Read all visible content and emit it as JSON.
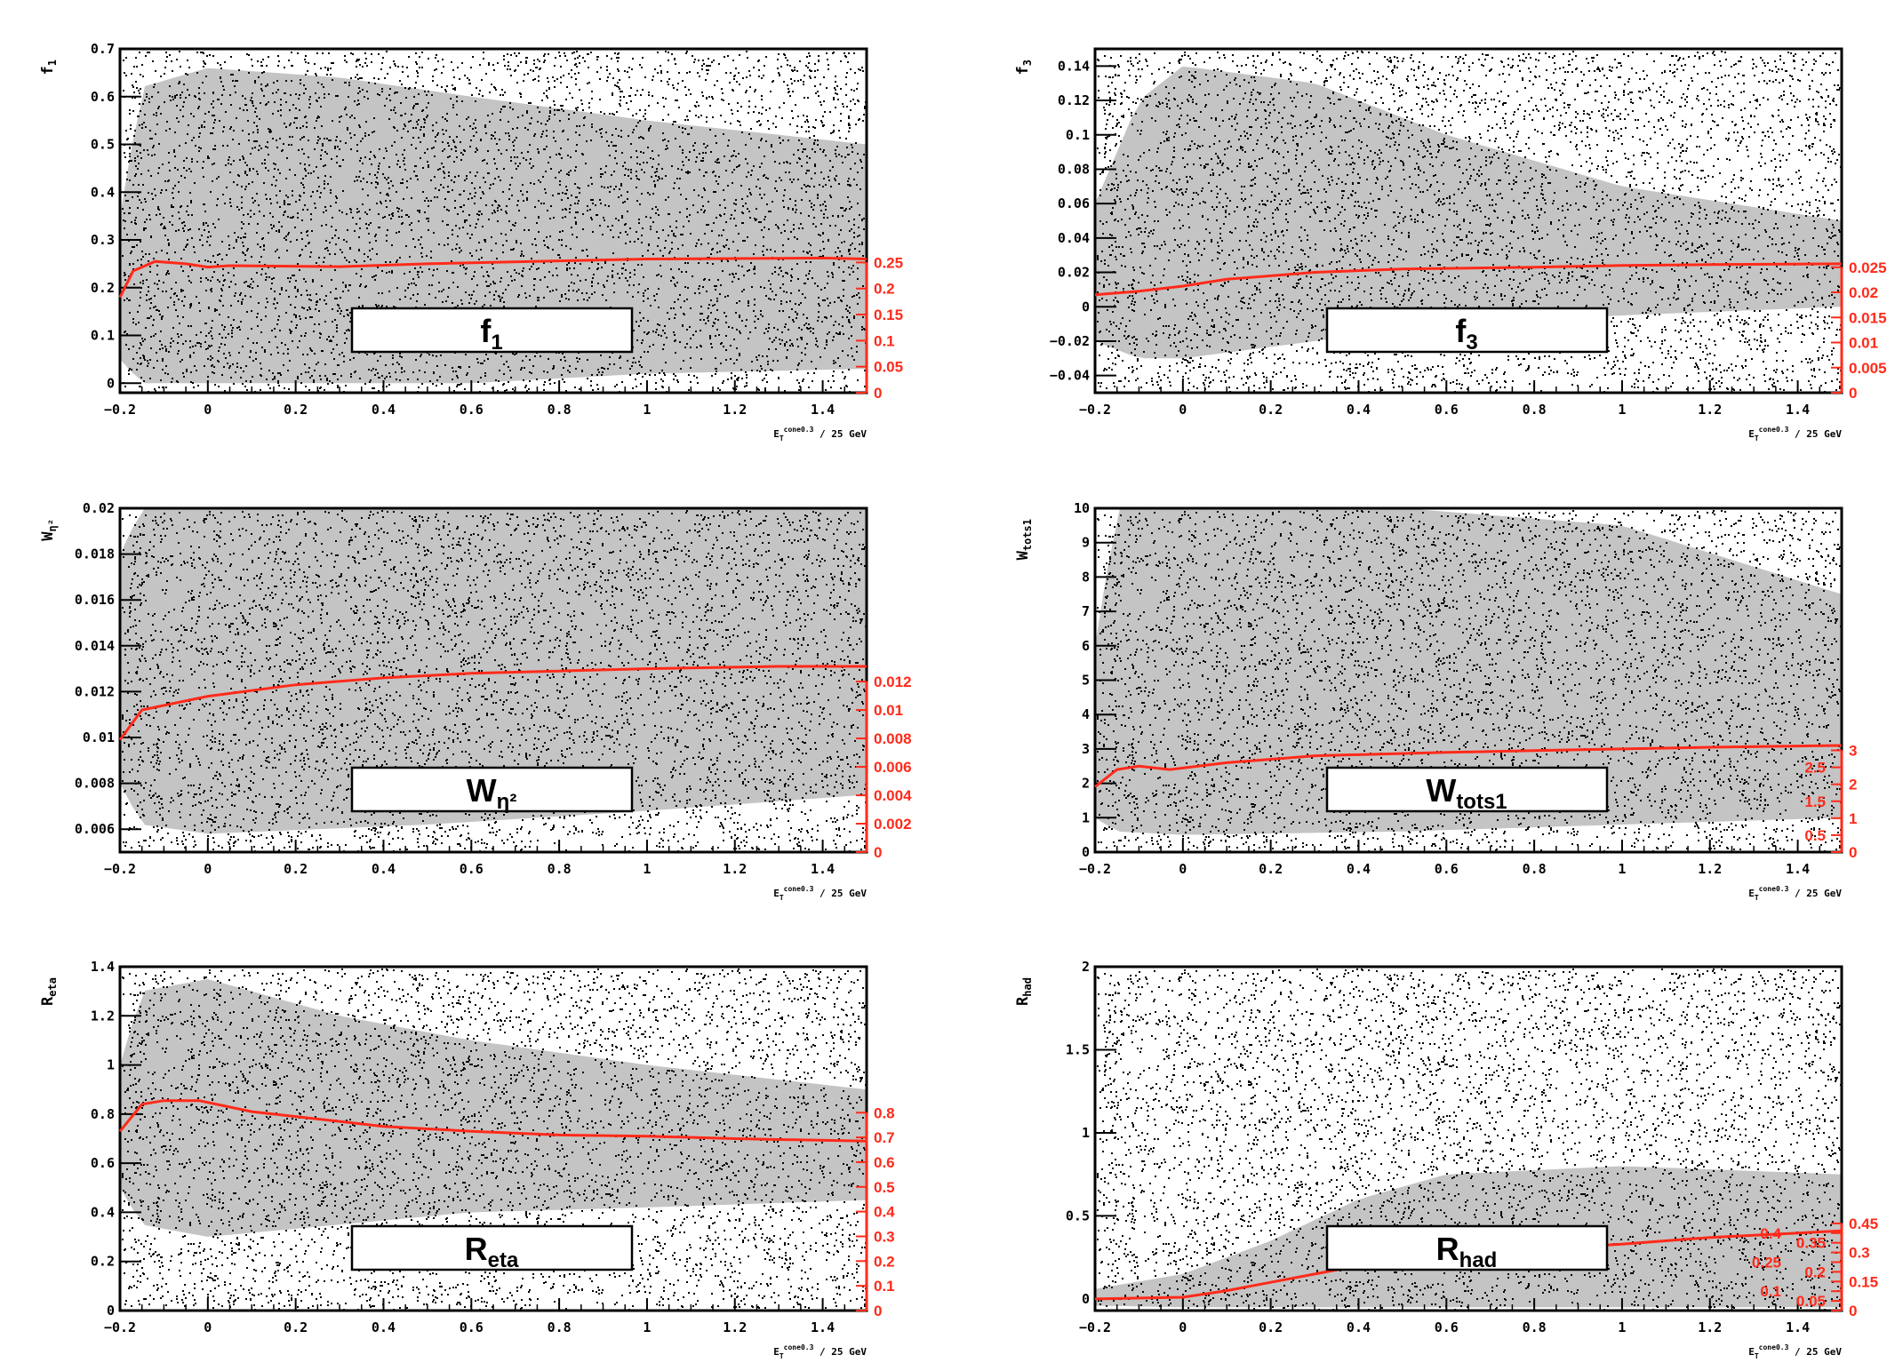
{
  "colors": {
    "band": "#c4c4c4",
    "dots": "#000000",
    "curve": "#ff2a1a",
    "right_axis": "#ff2a1a"
  },
  "chart_data": [
    {
      "type": "scatter",
      "title": "f1",
      "legend": {
        "main": "f",
        "sub": "1"
      },
      "ylabel": {
        "main": "f",
        "sub": "1"
      },
      "xlabel": {
        "main": "E",
        "sub": "T",
        "sup": "cone0.3",
        "rest": " / 25 GeV"
      },
      "xlim": [
        -0.2,
        1.5
      ],
      "xticks": [
        "-0.2",
        "0",
        "0.2",
        "0.4",
        "0.6",
        "0.8",
        "1",
        "1.2",
        "1.4"
      ],
      "ylim": [
        -0.02,
        0.7
      ],
      "yticks": [
        "0",
        "0.1",
        "0.2",
        "0.3",
        "0.4",
        "0.5",
        "0.6",
        "0.7"
      ],
      "right_ylim": [
        0,
        0.66
      ],
      "right_yticks": [
        "0",
        "0.05",
        "0.1",
        "0.15",
        "0.2",
        "0.25"
      ],
      "density_band": {
        "x": [
          -0.2,
          -0.15,
          0,
          0.3,
          0.6,
          1.0,
          1.5
        ],
        "lo": [
          0.05,
          0.0,
          0.0,
          0.0,
          0.0,
          0.02,
          0.03
        ],
        "hi": [
          0.35,
          0.62,
          0.66,
          0.64,
          0.6,
          0.55,
          0.5
        ]
      },
      "mean_curve": {
        "x": [
          -0.2,
          -0.17,
          -0.12,
          -0.05,
          0,
          0.05,
          0.3,
          0.5,
          0.8,
          1.0,
          1.2,
          1.4,
          1.5
        ],
        "y": [
          0.18,
          0.235,
          0.255,
          0.25,
          0.243,
          0.246,
          0.244,
          0.25,
          0.256,
          0.26,
          0.261,
          0.262,
          0.26
        ]
      }
    },
    {
      "type": "scatter",
      "title": "f3",
      "legend": {
        "main": "f",
        "sub": "3"
      },
      "ylabel": {
        "main": "f",
        "sub": "3"
      },
      "xlabel": {
        "main": "E",
        "sub": "T",
        "sup": "cone0.3",
        "rest": " / 25 GeV"
      },
      "xlim": [
        -0.2,
        1.5
      ],
      "xticks": [
        "-0.2",
        "0",
        "0.2",
        "0.4",
        "0.6",
        "0.8",
        "1",
        "1.2",
        "1.4"
      ],
      "ylim": [
        -0.05,
        0.15
      ],
      "yticks": [
        "-0.04",
        "-0.02",
        "0",
        "0.02",
        "0.04",
        "0.06",
        "0.08",
        "0.1",
        "0.12",
        "0.14"
      ],
      "right_ylim": [
        0,
        0.0685
      ],
      "right_yticks": [
        "0",
        "0.005",
        "0.01",
        "0.015",
        "0.02",
        "0.025"
      ],
      "density_band": {
        "x": [
          -0.2,
          -0.1,
          0,
          0.3,
          0.6,
          1.0,
          1.5
        ],
        "lo": [
          -0.02,
          -0.03,
          -0.03,
          -0.02,
          -0.01,
          -0.005,
          0.0
        ],
        "hi": [
          0.06,
          0.12,
          0.14,
          0.13,
          0.1,
          0.07,
          0.05
        ]
      },
      "mean_curve": {
        "x": [
          -0.2,
          -0.1,
          0,
          0.1,
          0.3,
          0.5,
          0.8,
          1.0,
          1.2,
          1.5
        ],
        "y": [
          0.007,
          0.009,
          0.012,
          0.016,
          0.02,
          0.022,
          0.023,
          0.024,
          0.0245,
          0.025
        ]
      }
    },
    {
      "type": "scatter",
      "title": "Weta2",
      "legend": {
        "main": "W",
        "sub": "η²"
      },
      "ylabel": {
        "main": "W",
        "sub": "η²"
      },
      "xlabel": {
        "main": "E",
        "sub": "T",
        "sup": "cone0.3",
        "rest": " / 25 GeV"
      },
      "xlim": [
        -0.2,
        1.5
      ],
      "xticks": [
        "-0.2",
        "0",
        "0.2",
        "0.4",
        "0.6",
        "0.8",
        "1",
        "1.2",
        "1.4"
      ],
      "ylim": [
        0.005,
        0.02
      ],
      "yticks": [
        "0.006",
        "0.008",
        "0.01",
        "0.012",
        "0.014",
        "0.016",
        "0.018",
        "0.02"
      ],
      "right_ylim": [
        0,
        0.0242
      ],
      "right_yticks": [
        "0",
        "0.002",
        "0.004",
        "0.006",
        "0.008",
        "0.01",
        "0.012"
      ],
      "density_band": {
        "x": [
          -0.2,
          -0.15,
          0,
          0.5,
          1.0,
          1.5
        ],
        "lo": [
          0.008,
          0.0062,
          0.0058,
          0.0062,
          0.0068,
          0.0075
        ],
        "hi": [
          0.018,
          0.02,
          0.02,
          0.02,
          0.02,
          0.02
        ]
      },
      "mean_curve": {
        "x": [
          -0.2,
          -0.15,
          -0.1,
          0,
          0.2,
          0.4,
          0.6,
          0.8,
          1.0,
          1.3,
          1.5
        ],
        "y": [
          0.0099,
          0.0112,
          0.0114,
          0.0118,
          0.0123,
          0.0126,
          0.0128,
          0.0129,
          0.013,
          0.0131,
          0.0131
        ]
      }
    },
    {
      "type": "scatter",
      "title": "Wtots1",
      "legend": {
        "main": "W",
        "sub": "tots1"
      },
      "ylabel": {
        "main": "W",
        "sub": "tots1"
      },
      "xlabel": {
        "main": "E",
        "sub": "T",
        "sup": "cone0.3",
        "rest": " / 25 GeV"
      },
      "xlim": [
        -0.2,
        1.5
      ],
      "xticks": [
        "-0.2",
        "0",
        "0.2",
        "0.4",
        "0.6",
        "0.8",
        "1",
        "1.2",
        "1.4"
      ],
      "ylim": [
        0,
        10
      ],
      "yticks": [
        "0",
        "1",
        "2",
        "3",
        "4",
        "5",
        "6",
        "7",
        "8",
        "9",
        "10"
      ],
      "right_ylim": [
        0,
        10.14
      ],
      "right_yticks": [
        "0",
        "0.5",
        "1",
        "1.5",
        "2",
        "2.5",
        "3"
      ],
      "density_band": {
        "x": [
          -0.2,
          -0.15,
          0,
          0.5,
          1.0,
          1.5
        ],
        "lo": [
          1.0,
          0.6,
          0.5,
          0.6,
          0.8,
          1.0
        ],
        "hi": [
          6.0,
          10,
          10,
          10,
          9.5,
          7.5
        ]
      },
      "mean_curve": {
        "x": [
          -0.2,
          -0.15,
          -0.1,
          -0.03,
          0.1,
          0.3,
          0.6,
          0.8,
          1.0,
          1.2,
          1.5
        ],
        "y": [
          1.9,
          2.4,
          2.5,
          2.4,
          2.6,
          2.8,
          2.9,
          2.95,
          3.0,
          3.05,
          3.1
        ]
      }
    },
    {
      "type": "scatter",
      "title": "Reta",
      "legend": {
        "main": "R",
        "sub": "eta"
      },
      "ylabel": {
        "main": "R",
        "sub": "eta"
      },
      "xlabel": {
        "main": "E",
        "sub": "T",
        "sup": "cone0.3",
        "rest": " / 25 GeV"
      },
      "xlim": [
        -0.2,
        1.5
      ],
      "xticks": [
        "-0.2",
        "0",
        "0.2",
        "0.4",
        "0.6",
        "0.8",
        "1",
        "1.2",
        "1.4"
      ],
      "ylim": [
        0,
        1.4
      ],
      "yticks": [
        "0",
        "0.2",
        "0.4",
        "0.6",
        "0.8",
        "1",
        "1.2",
        "1.4"
      ],
      "right_ylim": [
        0,
        1.39
      ],
      "right_yticks": [
        "0",
        "0.1",
        "0.2",
        "0.3",
        "0.4",
        "0.5",
        "0.6",
        "0.7",
        "0.8"
      ],
      "density_band": {
        "x": [
          -0.2,
          -0.15,
          0,
          0.3,
          0.6,
          1.0,
          1.5
        ],
        "lo": [
          0.5,
          0.35,
          0.3,
          0.35,
          0.4,
          0.42,
          0.45
        ],
        "hi": [
          1.0,
          1.3,
          1.35,
          1.2,
          1.1,
          1.0,
          0.9
        ]
      },
      "mean_curve": {
        "x": [
          -0.2,
          -0.15,
          -0.1,
          -0.02,
          0.1,
          0.2,
          0.4,
          0.6,
          0.8,
          1.0,
          1.2,
          1.5
        ],
        "y": [
          0.73,
          0.84,
          0.855,
          0.855,
          0.81,
          0.79,
          0.75,
          0.73,
          0.715,
          0.71,
          0.7,
          0.69
        ]
      }
    },
    {
      "type": "scatter",
      "title": "Rhad",
      "legend": {
        "main": "R",
        "sub": "had"
      },
      "ylabel": {
        "main": "R",
        "sub": "had"
      },
      "xlabel": {
        "main": "E",
        "sub": "T",
        "sup": "cone0.3",
        "rest": " / 25 GeV"
      },
      "xlim": [
        -0.2,
        1.5
      ],
      "xticks": [
        "-0.2",
        "0",
        "0.2",
        "0.4",
        "0.6",
        "0.8",
        "1",
        "1.2",
        "1.4"
      ],
      "ylim": [
        -0.07,
        2
      ],
      "yticks": [
        "0",
        "0.5",
        "1",
        "1.5",
        "2"
      ],
      "right_ylim": [
        0,
        1.775
      ],
      "right_yticks": [
        "0",
        "0.05",
        "0.1",
        "0.15",
        "0.2",
        "0.25",
        "0.3",
        "0.35",
        "0.4",
        "0.45"
      ],
      "density_band": {
        "x": [
          -0.2,
          0,
          0.2,
          0.4,
          0.6,
          1.0,
          1.5
        ],
        "lo": [
          -0.04,
          -0.05,
          -0.05,
          -0.05,
          -0.05,
          -0.05,
          -0.05
        ],
        "hi": [
          0.06,
          0.15,
          0.35,
          0.6,
          0.75,
          0.8,
          0.75
        ]
      },
      "mean_curve": {
        "x": [
          -0.2,
          0,
          0.1,
          0.2,
          0.3,
          0.4,
          0.6,
          0.8,
          1.0,
          1.2,
          1.35,
          1.5
        ],
        "y": [
          0,
          0.01,
          0.05,
          0.1,
          0.15,
          0.2,
          0.26,
          0.3,
          0.33,
          0.37,
          0.39,
          0.41
        ]
      }
    }
  ]
}
